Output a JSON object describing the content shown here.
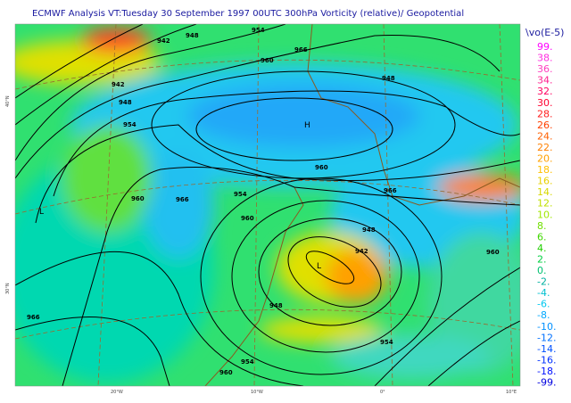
{
  "header": {
    "title": "ECMWF  Analysis VT:Tuesday 30 September 1997 00UTC 300hPa Vorticity (relative)/  Geopotential"
  },
  "legend": {
    "title": "\\vo(E-5)",
    "labels": [
      "99.",
      "38.",
      "36.",
      "34.",
      "32.",
      "30.",
      "28.",
      "26.",
      "24.",
      "22.",
      "20.",
      "18.",
      "16.",
      "14.",
      "12.",
      "10.",
      "8.",
      "6.",
      "4.",
      "2.",
      "0.",
      "-2.",
      "-4.",
      "-6.",
      "-8.",
      "-10.",
      "-12.",
      "-14.",
      "-16.",
      "-18.",
      "-99."
    ],
    "colors": [
      "#ff00ff",
      "#ff30e0",
      "#ff40c0",
      "#ff2090",
      "#ff0060",
      "#ff0030",
      "#ff2020",
      "#ff4000",
      "#ff6000",
      "#ff8000",
      "#ffa000",
      "#ffc000",
      "#e8d000",
      "#d8d800",
      "#c0e000",
      "#a0e800",
      "#70e000",
      "#40d800",
      "#20d000",
      "#00d040",
      "#00c070",
      "#00b0a0",
      "#00c0d0",
      "#00c8f0",
      "#00a8ff",
      "#0090ff",
      "#0070ff",
      "#0050ff",
      "#0030ff",
      "#0010ff",
      "#0000e0"
    ]
  },
  "map": {
    "contour_labels": [
      "942",
      "948",
      "954",
      "960",
      "966",
      "942",
      "948",
      "954",
      "960",
      "966",
      "948",
      "954",
      "960",
      "966",
      "948",
      "960",
      "942",
      "948",
      "954",
      "960",
      "954",
      "966",
      "960"
    ],
    "pressure_centers": [
      "H",
      "L",
      "L"
    ],
    "lon_labels": [
      "20°W",
      "10°W",
      "0°",
      "10°E"
    ],
    "lat_labels": [
      "40°N",
      "30°N"
    ]
  }
}
